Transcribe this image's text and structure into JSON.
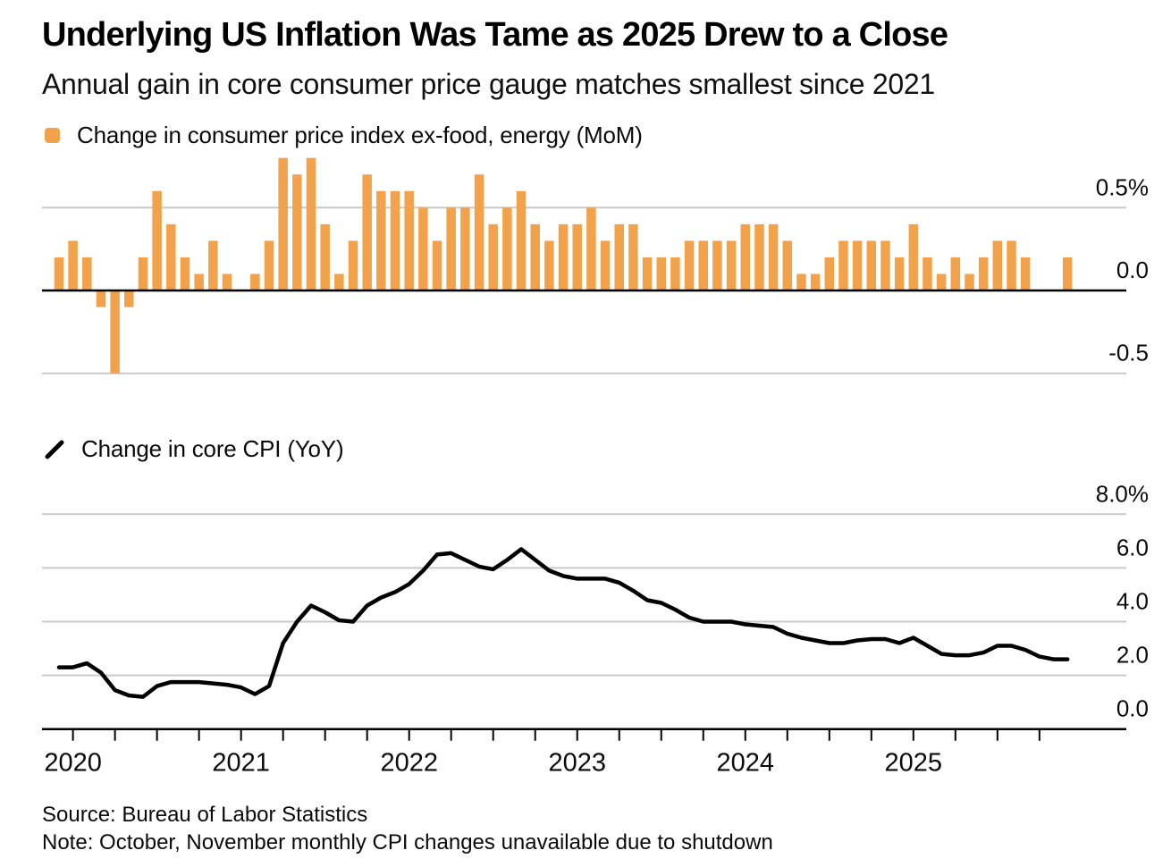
{
  "header": {
    "title": "Underlying US Inflation Was Tame as 2025 Drew to a Close",
    "subtitle": "Annual gain in core consumer price gauge matches smallest since 2021"
  },
  "legends": {
    "mom_label": "Change in consumer price index ex-food, energy (MoM)",
    "yoy_label": "Change in core CPI (YoY)"
  },
  "colors": {
    "bar": "#F3A24C",
    "line": "#000000",
    "grid": "#C9C9C9",
    "axis": "#000000",
    "text": "#0a0a0a"
  },
  "footer": {
    "source": "Source: Bureau of Labor Statistics",
    "note": "Note: October, November monthly CPI changes unavailable due to shutdown"
  },
  "chart_data": [
    {
      "type": "bar",
      "name": "Change in consumer price index ex-food, energy (MoM)",
      "unit": "%",
      "categories": [
        "2019-12",
        "2020-01",
        "2020-02",
        "2020-03",
        "2020-04",
        "2020-05",
        "2020-06",
        "2020-07",
        "2020-08",
        "2020-09",
        "2020-10",
        "2020-11",
        "2020-12",
        "2021-01",
        "2021-02",
        "2021-03",
        "2021-04",
        "2021-05",
        "2021-06",
        "2021-07",
        "2021-08",
        "2021-09",
        "2021-10",
        "2021-11",
        "2021-12",
        "2022-01",
        "2022-02",
        "2022-03",
        "2022-04",
        "2022-05",
        "2022-06",
        "2022-07",
        "2022-08",
        "2022-09",
        "2022-10",
        "2022-11",
        "2022-12",
        "2023-01",
        "2023-02",
        "2023-03",
        "2023-04",
        "2023-05",
        "2023-06",
        "2023-07",
        "2023-08",
        "2023-09",
        "2023-10",
        "2023-11",
        "2023-12",
        "2024-01",
        "2024-02",
        "2024-03",
        "2024-04",
        "2024-05",
        "2024-06",
        "2024-07",
        "2024-08",
        "2024-09",
        "2024-10",
        "2024-11",
        "2024-12",
        "2025-01",
        "2025-02",
        "2025-03",
        "2025-04",
        "2025-05",
        "2025-06",
        "2025-07",
        "2025-08",
        "2025-09",
        "2025-10",
        "2025-11",
        "2025-12"
      ],
      "values": [
        0.2,
        0.3,
        0.2,
        -0.1,
        -0.5,
        -0.1,
        0.2,
        0.6,
        0.4,
        0.2,
        0.1,
        0.3,
        0.1,
        0.0,
        0.1,
        0.3,
        0.8,
        0.7,
        0.8,
        0.4,
        0.1,
        0.3,
        0.7,
        0.6,
        0.6,
        0.6,
        0.5,
        0.3,
        0.5,
        0.5,
        0.7,
        0.4,
        0.5,
        0.6,
        0.4,
        0.3,
        0.4,
        0.4,
        0.5,
        0.3,
        0.4,
        0.4,
        0.2,
        0.2,
        0.2,
        0.3,
        0.3,
        0.3,
        0.3,
        0.4,
        0.4,
        0.4,
        0.3,
        0.1,
        0.1,
        0.2,
        0.3,
        0.3,
        0.3,
        0.3,
        0.2,
        0.4,
        0.2,
        0.1,
        0.2,
        0.1,
        0.2,
        0.3,
        0.3,
        0.2,
        null,
        null,
        0.2
      ],
      "missing_categories": [
        "2025-10",
        "2025-11"
      ],
      "ylim": [
        -0.7,
        0.85
      ],
      "yticks": [
        {
          "label": "0.5%",
          "value": 0.5
        },
        {
          "label": "0.0",
          "value": 0.0
        },
        {
          "label": "-0.5",
          "value": -0.5
        }
      ],
      "grid": true,
      "legend_position": "top-left"
    },
    {
      "type": "line",
      "name": "Change in core CPI (YoY)",
      "unit": "%",
      "categories": [
        "2019-12",
        "2020-01",
        "2020-02",
        "2020-03",
        "2020-04",
        "2020-05",
        "2020-06",
        "2020-07",
        "2020-08",
        "2020-09",
        "2020-10",
        "2020-11",
        "2020-12",
        "2021-01",
        "2021-02",
        "2021-03",
        "2021-04",
        "2021-05",
        "2021-06",
        "2021-07",
        "2021-08",
        "2021-09",
        "2021-10",
        "2021-11",
        "2021-12",
        "2022-01",
        "2022-02",
        "2022-03",
        "2022-04",
        "2022-05",
        "2022-06",
        "2022-07",
        "2022-08",
        "2022-09",
        "2022-10",
        "2022-11",
        "2022-12",
        "2023-01",
        "2023-02",
        "2023-03",
        "2023-04",
        "2023-05",
        "2023-06",
        "2023-07",
        "2023-08",
        "2023-09",
        "2023-10",
        "2023-11",
        "2023-12",
        "2024-01",
        "2024-02",
        "2024-03",
        "2024-04",
        "2024-05",
        "2024-06",
        "2024-07",
        "2024-08",
        "2024-09",
        "2024-10",
        "2024-11",
        "2024-12",
        "2025-01",
        "2025-02",
        "2025-03",
        "2025-04",
        "2025-05",
        "2025-06",
        "2025-07",
        "2025-08",
        "2025-09",
        "2025-10",
        "2025-11",
        "2025-12"
      ],
      "values": [
        2.3,
        2.3,
        2.45,
        2.1,
        1.45,
        1.25,
        1.2,
        1.6,
        1.75,
        1.75,
        1.75,
        1.7,
        1.65,
        1.55,
        1.3,
        1.6,
        3.2,
        4.0,
        4.6,
        4.35,
        4.05,
        4.0,
        4.6,
        4.9,
        5.1,
        5.4,
        5.9,
        6.5,
        6.55,
        6.3,
        6.05,
        5.95,
        6.3,
        6.7,
        6.3,
        5.9,
        5.7,
        5.6,
        5.6,
        5.6,
        5.45,
        5.15,
        4.8,
        4.7,
        4.45,
        4.15,
        4.0,
        4.0,
        4.0,
        3.9,
        3.85,
        3.8,
        3.55,
        3.4,
        3.3,
        3.2,
        3.2,
        3.3,
        3.35,
        3.35,
        3.2,
        3.4,
        3.1,
        2.8,
        2.75,
        2.75,
        2.85,
        3.1,
        3.1,
        2.95,
        2.7,
        2.6,
        2.6
      ],
      "ylim": [
        0,
        8.8
      ],
      "yticks": [
        {
          "label": "8.0%",
          "value": 8.0
        },
        {
          "label": "6.0",
          "value": 6.0
        },
        {
          "label": "4.0",
          "value": 4.0
        },
        {
          "label": "2.0",
          "value": 2.0
        },
        {
          "label": "0.0",
          "value": 0.0
        }
      ],
      "grid": true,
      "legend_position": "top-left"
    }
  ],
  "x_axis": {
    "year_labels": [
      "2020",
      "2021",
      "2022",
      "2023",
      "2024",
      "2025"
    ],
    "tick_interval_months": 3
  }
}
